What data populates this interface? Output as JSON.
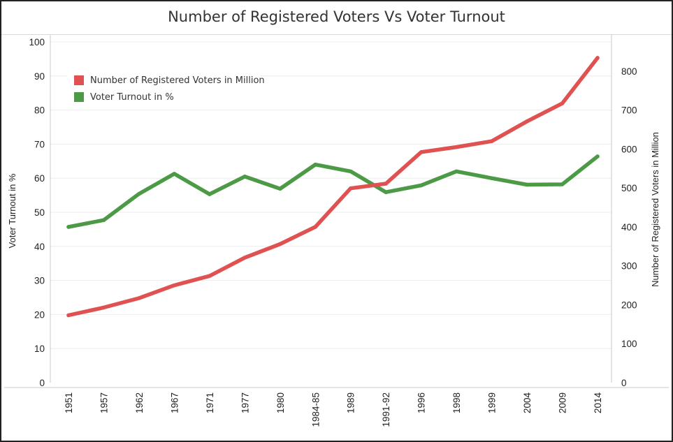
{
  "chart_data": {
    "type": "line",
    "title": "Number of Registered Voters Vs Voter Turnout",
    "categories": [
      "1951",
      "1957",
      "1962",
      "1967",
      "1971",
      "1977",
      "1980",
      "1984-85",
      "1989",
      "1991-92",
      "1996",
      "1998",
      "1999",
      "2004",
      "2009",
      "2014"
    ],
    "y_left": {
      "label": "Voter Turnout in %",
      "ylim": [
        0,
        100
      ],
      "ticks": [
        0,
        10,
        20,
        30,
        40,
        50,
        60,
        70,
        80,
        90,
        100
      ]
    },
    "y_right": {
      "label": "Number of Registered Voters in Million",
      "ylim": [
        0,
        875
      ],
      "ticks": [
        0,
        100,
        200,
        300,
        400,
        500,
        600,
        700,
        800
      ]
    },
    "series": [
      {
        "name": "Number of Registered Voters in Million",
        "axis": "right",
        "color": "#e05252",
        "values": [
          173,
          193,
          217,
          250,
          274,
          321,
          356,
          400,
          499,
          511,
          592,
          605,
          620,
          671,
          717,
          834
        ]
      },
      {
        "name": "Voter Turnout in %",
        "axis": "left",
        "color": "#4c9a45",
        "values": [
          45.7,
          47.7,
          55.4,
          61.3,
          55.3,
          60.5,
          56.9,
          64.0,
          62.0,
          55.9,
          57.9,
          62.0,
          60.0,
          58.1,
          58.2,
          66.4
        ]
      }
    ],
    "legend": {
      "position": "top-left"
    },
    "grid": true
  }
}
